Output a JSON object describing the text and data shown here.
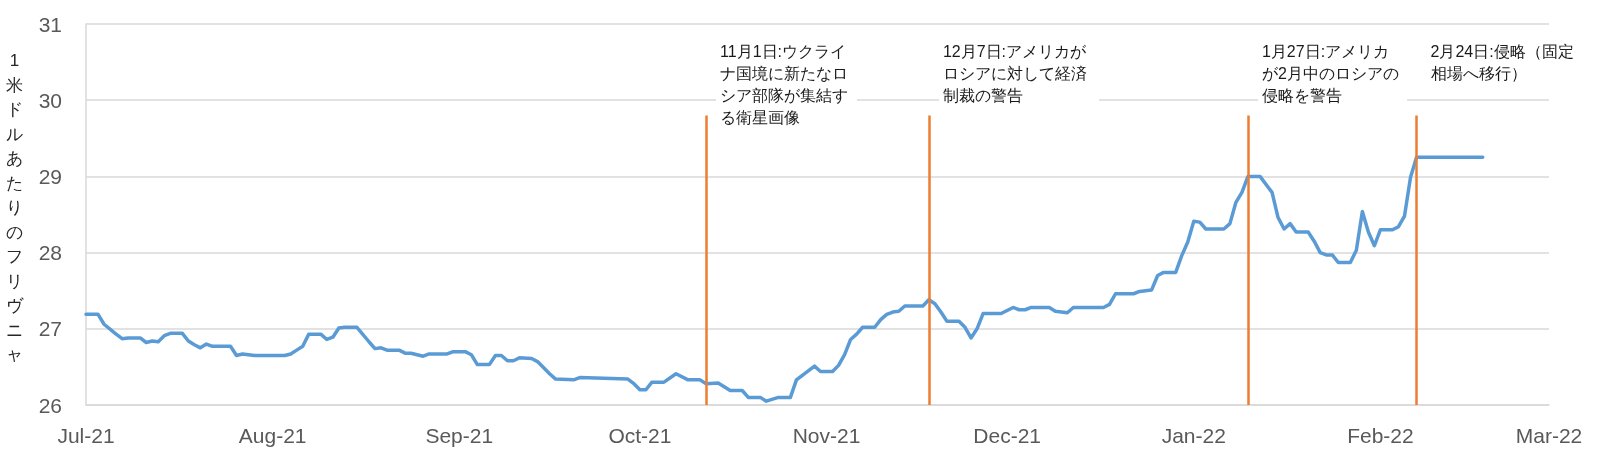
{
  "chart_data": {
    "type": "line",
    "ylabel": "1米ドルあたりのフリヴニャ",
    "x": [
      "2021-07-01",
      "2021-07-03",
      "2021-07-04",
      "2021-07-06",
      "2021-07-07",
      "2021-07-08",
      "2021-07-10",
      "2021-07-11",
      "2021-07-12",
      "2021-07-13",
      "2021-07-14",
      "2021-07-15",
      "2021-07-17",
      "2021-07-18",
      "2021-07-19",
      "2021-07-20",
      "2021-07-21",
      "2021-07-22",
      "2021-07-25",
      "2021-07-26",
      "2021-07-27",
      "2021-07-29",
      "2021-08-03",
      "2021-08-04",
      "2021-08-05",
      "2021-08-06",
      "2021-08-07",
      "2021-08-09",
      "2021-08-10",
      "2021-08-11",
      "2021-08-12",
      "2021-08-13",
      "2021-08-15",
      "2021-08-17",
      "2021-08-18",
      "2021-08-19",
      "2021-08-20",
      "2021-08-22",
      "2021-08-23",
      "2021-08-24",
      "2021-08-26",
      "2021-08-27",
      "2021-08-30",
      "2021-08-31",
      "2021-09-02",
      "2021-09-03",
      "2021-09-04",
      "2021-09-06",
      "2021-09-07",
      "2021-09-08",
      "2021-09-09",
      "2021-09-10",
      "2021-09-11",
      "2021-09-13",
      "2021-09-14",
      "2021-09-16",
      "2021-09-17",
      "2021-09-20",
      "2021-09-21",
      "2021-09-25",
      "2021-09-29",
      "2021-09-30",
      "2021-10-01",
      "2021-10-02",
      "2021-10-03",
      "2021-10-05",
      "2021-10-07",
      "2021-10-09",
      "2021-10-11",
      "2021-10-12",
      "2021-10-14",
      "2021-10-16",
      "2021-10-18",
      "2021-10-19",
      "2021-10-21",
      "2021-10-22",
      "2021-10-24",
      "2021-10-26",
      "2021-10-27",
      "2021-10-30",
      "2021-10-31",
      "2021-11-02",
      "2021-11-03",
      "2021-11-04",
      "2021-11-05",
      "2021-11-06",
      "2021-11-07",
      "2021-11-09",
      "2021-11-10",
      "2021-11-11",
      "2021-11-12",
      "2021-11-13",
      "2021-11-14",
      "2021-11-17",
      "2021-11-18",
      "2021-11-19",
      "2021-11-20",
      "2021-11-21",
      "2021-11-23",
      "2021-11-24",
      "2021-11-25",
      "2021-11-26",
      "2021-11-27",
      "2021-11-30",
      "2021-12-02",
      "2021-12-03",
      "2021-12-04",
      "2021-12-05",
      "2021-12-08",
      "2021-12-09",
      "2021-12-11",
      "2021-12-12",
      "2021-12-17",
      "2021-12-18",
      "2021-12-19",
      "2021-12-22",
      "2021-12-23",
      "2021-12-25",
      "2021-12-26",
      "2021-12-27",
      "2021-12-29",
      "2021-12-30",
      "2021-12-31",
      "2022-01-01",
      "2022-01-02",
      "2022-01-03",
      "2022-01-06",
      "2022-01-07",
      "2022-01-08",
      "2022-01-09",
      "2022-01-10",
      "2022-01-12",
      "2022-01-14",
      "2022-01-15",
      "2022-01-16",
      "2022-01-17",
      "2022-01-18",
      "2022-01-20",
      "2022-01-21",
      "2022-01-22",
      "2022-01-23",
      "2022-01-24",
      "2022-01-25",
      "2022-01-27",
      "2022-01-28",
      "2022-01-29",
      "2022-01-30",
      "2022-01-31",
      "2022-02-01",
      "2022-02-03",
      "2022-02-04",
      "2022-02-05",
      "2022-02-06",
      "2022-02-07",
      "2022-02-18"
    ],
    "series": [
      {
        "color": "#5b9bd5",
        "values": [
          27.19,
          27.19,
          27.06,
          26.93,
          26.87,
          26.88,
          26.88,
          26.82,
          26.84,
          26.83,
          26.91,
          26.94,
          26.94,
          26.84,
          26.79,
          26.75,
          26.8,
          26.77,
          26.77,
          26.65,
          26.67,
          26.65,
          26.65,
          26.67,
          26.72,
          26.77,
          26.93,
          26.93,
          26.86,
          26.89,
          27.01,
          27.02,
          27.02,
          26.83,
          26.74,
          26.75,
          26.72,
          26.72,
          26.68,
          26.68,
          26.64,
          26.67,
          26.67,
          26.7,
          26.7,
          26.66,
          26.53,
          26.53,
          26.65,
          26.65,
          26.58,
          26.58,
          26.62,
          26.61,
          26.57,
          26.41,
          26.34,
          26.33,
          26.36,
          26.35,
          26.34,
          26.28,
          26.2,
          26.2,
          26.3,
          26.3,
          26.41,
          26.33,
          26.33,
          26.28,
          26.29,
          26.19,
          26.19,
          26.1,
          26.1,
          26.05,
          26.1,
          26.1,
          26.33,
          26.51,
          26.44,
          26.44,
          26.52,
          26.66,
          26.86,
          26.93,
          27.02,
          27.02,
          27.12,
          27.19,
          27.22,
          27.23,
          27.3,
          27.3,
          27.38,
          27.33,
          27.22,
          27.1,
          27.1,
          27.02,
          26.88,
          27.0,
          27.2,
          27.2,
          27.28,
          27.25,
          27.25,
          27.28,
          27.28,
          27.23,
          27.21,
          27.28,
          27.28,
          27.32,
          27.46,
          27.46,
          27.49,
          27.51,
          27.7,
          27.74,
          27.74,
          27.96,
          28.14,
          28.41,
          28.4,
          28.31,
          28.31,
          28.38,
          28.66,
          28.79,
          29.0,
          29.0,
          28.79,
          28.46,
          28.31,
          28.38,
          28.27,
          28.27,
          28.15,
          28.0,
          27.97,
          27.97,
          27.87,
          27.87,
          28.03,
          28.54,
          28.27,
          28.09,
          28.3,
          28.3,
          28.34,
          28.48,
          28.99,
          29.25,
          29.25
        ]
      }
    ],
    "xlim": [
      "2021-07-01",
      "2022-03-01"
    ],
    "xticks": [
      {
        "value": "2021-07-01",
        "label": "Jul-21"
      },
      {
        "value": "2021-08-01",
        "label": "Aug-21"
      },
      {
        "value": "2021-09-01",
        "label": "Sep-21"
      },
      {
        "value": "2021-10-01",
        "label": "Oct-21"
      },
      {
        "value": "2021-11-01",
        "label": "Nov-21"
      },
      {
        "value": "2021-12-01",
        "label": "Dec-21"
      },
      {
        "value": "2022-01-01",
        "label": "Jan-22"
      },
      {
        "value": "2022-02-01",
        "label": "Feb-22"
      },
      {
        "value": "2022-03-01",
        "label": "Mar-22"
      }
    ],
    "ylim": [
      26,
      31
    ],
    "yticks": [
      26,
      27,
      28,
      29,
      30,
      31
    ],
    "grid": "y",
    "marker": "none",
    "ref_lines": [
      {
        "axis": "x",
        "value": "2021-10-12",
        "label": "11月1日:ウクライナ国境に新たなロシア部隊が集結する衛星画像",
        "color": "#ed7d31"
      },
      {
        "axis": "x",
        "value": "2021-11-18",
        "label": "12月7日:アメリカがロシアに対して経済制裁の警告",
        "color": "#ed7d31"
      },
      {
        "axis": "x",
        "value": "2022-01-10",
        "label": "1月27日:アメリカが2月中のロシアの侵略を警告",
        "color": "#ed7d31"
      },
      {
        "axis": "x",
        "value": "2022-02-07",
        "label": "2月24日:侵略（固定相場へ移行）",
        "color": "#ed7d31"
      }
    ]
  }
}
